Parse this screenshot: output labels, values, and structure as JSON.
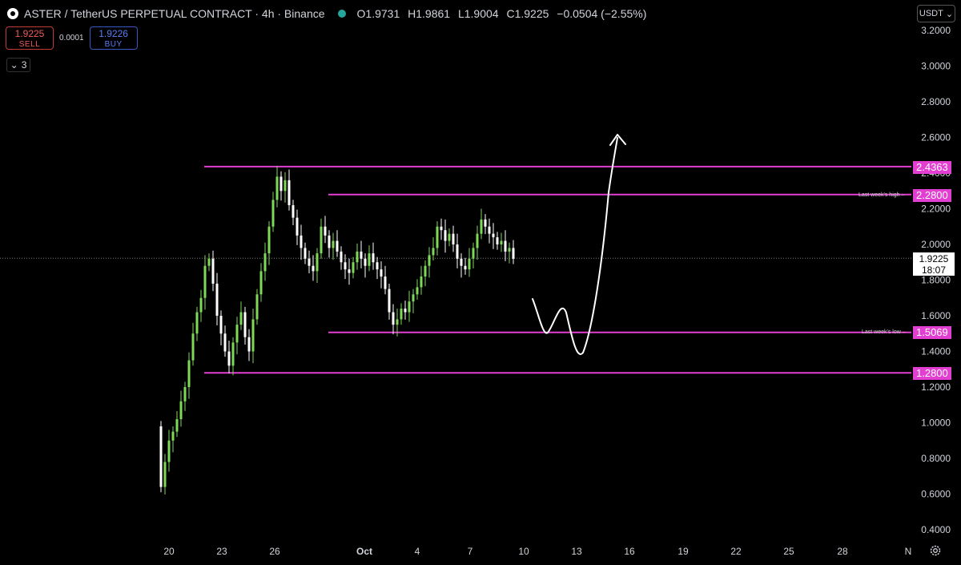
{
  "header": {
    "symbol": "ASTER / TetherUS PERPETUAL CONTRACT · 4h · Binance",
    "open": "O1.9731",
    "high": "H1.9861",
    "low": "L1.9004",
    "close": "C1.9225",
    "change": "−0.0504 (−2.55%)"
  },
  "trade": {
    "sell_price": "1.9225",
    "sell_label": "SELL",
    "spread": "0.0001",
    "buy_price": "1.9226",
    "buy_label": "BUY"
  },
  "collapse_count": "3",
  "currency": "USDT",
  "current_price": {
    "price": "1.9225",
    "countdown": "18:07"
  },
  "levels": [
    {
      "price": "2.4363",
      "note": ""
    },
    {
      "price": "2.2800",
      "note": "Last week's high"
    },
    {
      "price": "1.5069",
      "note": "Last week's low"
    },
    {
      "price": "1.2800",
      "note": ""
    }
  ],
  "colors": {
    "up": "#7ed957",
    "down": "#ffffff",
    "level": "#e23fd2",
    "bg": "#000000"
  },
  "chart_data": {
    "type": "candlestick",
    "y_ticks": [
      "3.2000",
      "3.0000",
      "2.8000",
      "2.6000",
      "2.4000",
      "2.2000",
      "2.0000",
      "1.8000",
      "1.6000",
      "1.4000",
      "1.2000",
      "1.0000",
      "0.8000",
      "0.6000",
      "0.4000"
    ],
    "x_ticks": [
      "20",
      "23",
      "26",
      "Oct",
      "4",
      "7",
      "10",
      "13",
      "16",
      "19",
      "22",
      "25",
      "28",
      "N"
    ],
    "ylim": [
      0.4,
      3.2
    ],
    "grid": false,
    "hlines": [
      2.4363,
      2.28,
      1.5069,
      1.28
    ],
    "closes": [
      0.64,
      0.78,
      0.9,
      0.95,
      1.02,
      1.12,
      1.2,
      1.35,
      1.5,
      1.62,
      1.7,
      1.88,
      1.92,
      1.78,
      1.6,
      1.5,
      1.4,
      1.32,
      1.45,
      1.55,
      1.62,
      1.48,
      1.4,
      1.58,
      1.72,
      1.85,
      1.95,
      2.1,
      2.25,
      2.38,
      2.3,
      2.36,
      2.22,
      2.15,
      2.05,
      1.98,
      1.92,
      1.88,
      1.85,
      1.95,
      2.1,
      2.05,
      1.98,
      2.02,
      1.96,
      1.9,
      1.86,
      1.84,
      1.9,
      1.96,
      1.92,
      1.88,
      1.95,
      1.9,
      1.86,
      1.82,
      1.75,
      1.62,
      1.55,
      1.58,
      1.64,
      1.62,
      1.68,
      1.72,
      1.76,
      1.82,
      1.88,
      1.94,
      1.98,
      2.1,
      2.08,
      2.02,
      2.06,
      2.0,
      1.92,
      1.88,
      1.86,
      1.92,
      1.98,
      2.06,
      2.14,
      2.1,
      2.06,
      2.04,
      2.0,
      2.02,
      1.96,
      1.98,
      1.92
    ]
  }
}
